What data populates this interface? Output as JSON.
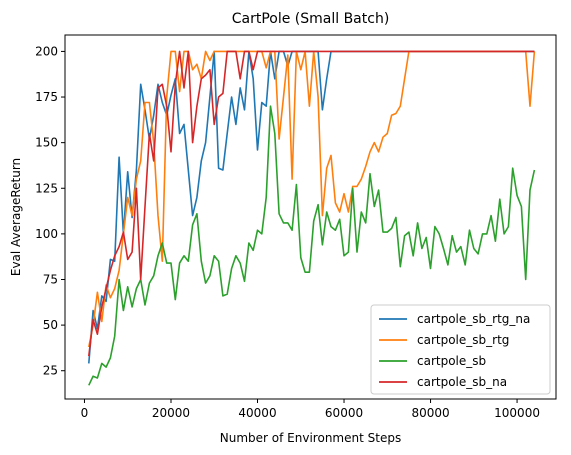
{
  "chart_data": {
    "type": "line",
    "title": "CartPole (Small Batch)",
    "xlabel": "Number of Environment Steps",
    "ylabel": "Eval AverageReturn",
    "xlim": [
      -4500,
      109000
    ],
    "ylim": [
      9.5,
      209
    ],
    "xticks": [
      0,
      20000,
      40000,
      60000,
      80000,
      100000
    ],
    "yticks": [
      25,
      50,
      75,
      100,
      125,
      150,
      175,
      200
    ],
    "grid": false,
    "legend_position": "lower right",
    "series": [
      {
        "name": "cartpole_sb_rtg_na",
        "color": "#1f77b4",
        "x": [
          1000,
          2000,
          3000,
          4000,
          5000,
          6000,
          7000,
          8000,
          9000,
          10000,
          11000,
          12000,
          13000,
          14000,
          15000,
          16000,
          17000,
          18000,
          19000,
          20000,
          21000,
          22000,
          23000,
          24000,
          25000,
          26000,
          27000,
          28000,
          29000,
          30000,
          31000,
          32000,
          33000,
          34000,
          35000,
          36000,
          37000,
          38000,
          39000,
          40000,
          41000,
          42000,
          43000,
          44000,
          45000,
          46000,
          47000,
          48000,
          49000,
          50000,
          51000,
          52000,
          53000,
          54000,
          55000,
          56000,
          57000,
          58000,
          60000,
          70000,
          80000,
          90000,
          100000,
          104000
        ],
        "y": [
          29,
          58,
          48,
          66,
          63,
          86,
          85,
          142,
          100,
          134,
          109,
          135,
          182,
          168,
          152,
          165,
          182,
          172,
          165,
          176,
          185,
          155,
          160,
          135,
          110,
          120,
          140,
          150,
          175,
          200,
          136,
          135,
          155,
          175,
          160,
          180,
          168,
          200,
          185,
          146,
          172,
          170,
          200,
          185,
          200,
          200,
          192,
          200,
          200,
          200,
          200,
          200,
          200,
          200,
          168,
          185,
          200,
          200,
          200,
          200,
          200,
          200,
          200,
          200
        ]
      },
      {
        "name": "cartpole_sb_rtg",
        "color": "#ff7f0e",
        "x": [
          1000,
          2000,
          3000,
          4000,
          5000,
          6000,
          7000,
          8000,
          9000,
          10000,
          11000,
          12000,
          13000,
          14000,
          15000,
          16000,
          17000,
          18000,
          19000,
          20000,
          21000,
          22000,
          23000,
          24000,
          25000,
          26000,
          27000,
          28000,
          29000,
          30000,
          32000,
          34000,
          36000,
          38000,
          40000,
          41000,
          42000,
          43000,
          44000,
          45000,
          46000,
          47000,
          48000,
          49000,
          50000,
          51000,
          52000,
          53000,
          54000,
          55000,
          56000,
          57000,
          58000,
          59000,
          60000,
          61000,
          62000,
          63000,
          64000,
          65000,
          66000,
          67000,
          68000,
          69000,
          70000,
          71000,
          72000,
          73000,
          74000,
          75000,
          76000,
          77000,
          78000,
          80000,
          85000,
          90000,
          95000,
          100000,
          102000,
          103000,
          104000
        ],
        "y": [
          38,
          50,
          68,
          52,
          72,
          65,
          70,
          80,
          100,
          120,
          110,
          130,
          140,
          172,
          172,
          150,
          110,
          85,
          175,
          200,
          200,
          178,
          200,
          200,
          190,
          193,
          185,
          200,
          195,
          200,
          200,
          200,
          200,
          200,
          200,
          200,
          191,
          200,
          200,
          152,
          175,
          198,
          130,
          200,
          190,
          200,
          170,
          200,
          175,
          110,
          136,
          143,
          117,
          112,
          122,
          112,
          126,
          126,
          130,
          137,
          145,
          150,
          145,
          153,
          155,
          165,
          166,
          170,
          185,
          200,
          200,
          200,
          200,
          200,
          200,
          200,
          200,
          200,
          200,
          170,
          200
        ]
      },
      {
        "name": "cartpole_sb",
        "color": "#2ca02c",
        "x": [
          1000,
          2000,
          3000,
          4000,
          5000,
          6000,
          7000,
          8000,
          9000,
          10000,
          11000,
          12000,
          13000,
          14000,
          15000,
          16000,
          17000,
          18000,
          19000,
          20000,
          21000,
          22000,
          23000,
          24000,
          25000,
          26000,
          27000,
          28000,
          29000,
          30000,
          31000,
          32000,
          33000,
          34000,
          35000,
          36000,
          37000,
          38000,
          39000,
          40000,
          41000,
          42000,
          43000,
          44000,
          45000,
          46000,
          47000,
          48000,
          49000,
          50000,
          51000,
          52000,
          53000,
          54000,
          55000,
          56000,
          57000,
          58000,
          59000,
          60000,
          61000,
          62000,
          63000,
          64000,
          65000,
          66000,
          67000,
          68000,
          69000,
          70000,
          71000,
          72000,
          73000,
          74000,
          75000,
          76000,
          77000,
          78000,
          79000,
          80000,
          81000,
          82000,
          83000,
          84000,
          85000,
          86000,
          87000,
          88000,
          89000,
          90000,
          91000,
          92000,
          93000,
          94000,
          95000,
          96000,
          97000,
          98000,
          99000,
          100000,
          101000,
          102000,
          103000,
          104000
        ],
        "y": [
          17,
          22,
          21,
          29,
          27,
          32,
          44,
          75,
          58,
          71,
          60,
          70,
          75,
          61,
          73,
          77,
          88,
          95,
          84,
          84,
          64,
          84,
          88,
          85,
          105,
          111,
          85,
          73,
          77,
          88,
          85,
          66,
          67,
          81,
          88,
          84,
          74,
          95,
          91,
          102,
          100,
          120,
          170,
          155,
          111,
          106,
          106,
          102,
          127,
          87,
          79,
          79,
          107,
          116,
          94,
          112,
          104,
          102,
          108,
          88,
          90,
          125,
          90,
          112,
          106,
          133,
          115,
          124,
          101,
          101,
          103,
          109,
          82,
          99,
          101,
          88,
          106,
          92,
          98,
          81,
          104,
          100,
          92,
          83,
          99,
          90,
          93,
          83,
          102,
          92,
          89,
          100,
          100,
          110,
          96,
          119,
          100,
          104,
          136,
          121,
          115,
          75,
          124,
          135
        ]
      },
      {
        "name": "cartpole_sb_na",
        "color": "#d62728",
        "x": [
          1000,
          2000,
          3000,
          4000,
          5000,
          6000,
          7000,
          8000,
          9000,
          10000,
          11000,
          12000,
          13000,
          14000,
          15000,
          16000,
          17000,
          18000,
          19000,
          20000,
          21000,
          22000,
          23000,
          24000,
          25000,
          26000,
          27000,
          28000,
          29000,
          30000,
          31000,
          32000,
          33000,
          34000,
          35000,
          36000,
          37000,
          38000,
          39000,
          40000,
          41000,
          42000,
          43000,
          44000,
          45000,
          50000,
          55000,
          60000,
          70000,
          80000,
          90000,
          100000,
          104000
        ],
        "y": [
          33,
          53,
          45,
          60,
          70,
          80,
          88,
          93,
          101,
          86,
          90,
          125,
          75,
          115,
          155,
          140,
          180,
          182,
          170,
          145,
          182,
          200,
          180,
          200,
          150,
          170,
          185,
          187,
          190,
          160,
          175,
          177,
          200,
          200,
          200,
          185,
          200,
          200,
          190,
          200,
          200,
          200,
          200,
          200,
          200,
          200,
          200,
          200,
          200,
          200,
          200,
          200,
          200
        ]
      }
    ]
  }
}
